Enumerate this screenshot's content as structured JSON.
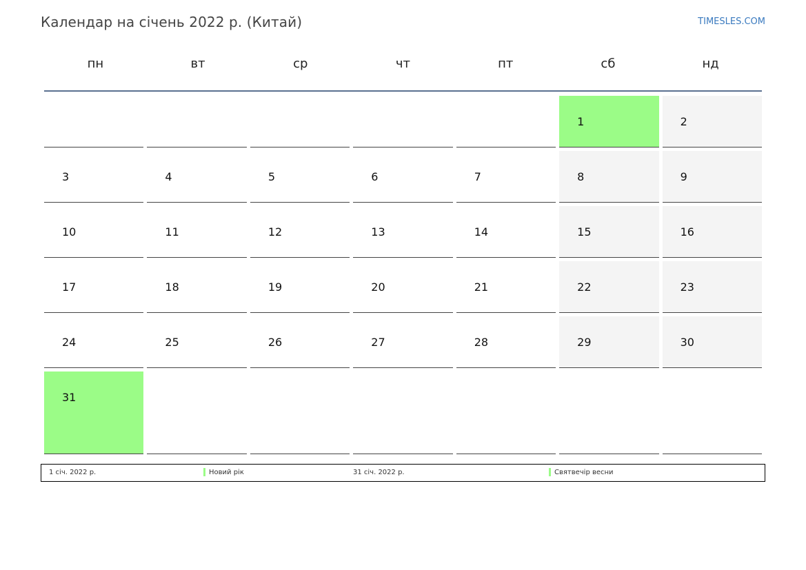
{
  "header": {
    "title": "Календар на січень 2022 р. (Китай)",
    "site": "TIMESLES.COM"
  },
  "weekdays": [
    "пн",
    "вт",
    "ср",
    "чт",
    "пт",
    "сб",
    "нд"
  ],
  "weeks": [
    [
      "",
      "",
      "",
      "",
      "",
      "1",
      "2"
    ],
    [
      "3",
      "4",
      "5",
      "6",
      "7",
      "8",
      "9"
    ],
    [
      "10",
      "11",
      "12",
      "13",
      "14",
      "15",
      "16"
    ],
    [
      "17",
      "18",
      "19",
      "20",
      "21",
      "22",
      "23"
    ],
    [
      "24",
      "25",
      "26",
      "27",
      "28",
      "29",
      "30"
    ],
    [
      "31",
      "",
      "",
      "",
      "",
      "",
      ""
    ]
  ],
  "holiday_days": [
    "1",
    "31"
  ],
  "colors": {
    "holiday": "#9bfc87",
    "weekend": "#f4f4f4",
    "accent": "#3a7abf"
  },
  "legend": [
    {
      "date": "1 січ. 2022 р.",
      "name": "Новий рік"
    },
    {
      "date": "31 січ. 2022 р.",
      "name": "Святвечір весни"
    }
  ]
}
